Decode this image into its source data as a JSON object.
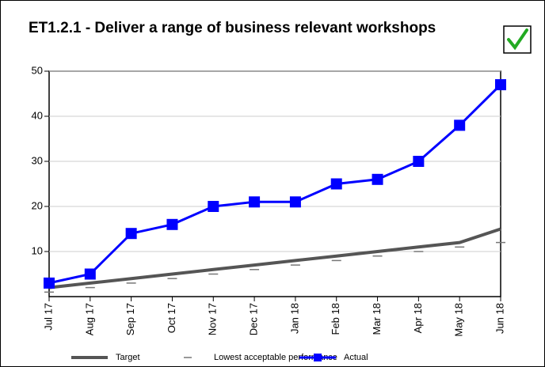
{
  "chart_data": {
    "type": "line",
    "title": "ET1.2.1 - Deliver a range of business relevant workshops",
    "categories": [
      "Jul 17",
      "Aug 17",
      "Sep 17",
      "Oct 17",
      "Nov 17",
      "Dec 17",
      "Jan 18",
      "Feb 18",
      "Mar 18",
      "Apr 18",
      "May 18",
      "Jun 18"
    ],
    "series": [
      {
        "name": "Target",
        "color": "#555555",
        "style": "line",
        "values": [
          2,
          3,
          4,
          5,
          6,
          7,
          8,
          9,
          10,
          11,
          12,
          15
        ]
      },
      {
        "name": "Lowest acceptable performance",
        "color": "#777777",
        "style": "dash",
        "values": [
          1,
          2,
          3,
          4,
          5,
          6,
          7,
          8,
          9,
          10,
          11,
          12
        ]
      },
      {
        "name": "Actual",
        "color": "#0000ff",
        "style": "line-square",
        "values": [
          3,
          5,
          14,
          16,
          20,
          21,
          21,
          25,
          26,
          30,
          38,
          47
        ]
      }
    ],
    "ylim": [
      0,
      50
    ],
    "yticks": [
      10,
      20,
      30,
      40,
      50
    ],
    "grid": true
  }
}
